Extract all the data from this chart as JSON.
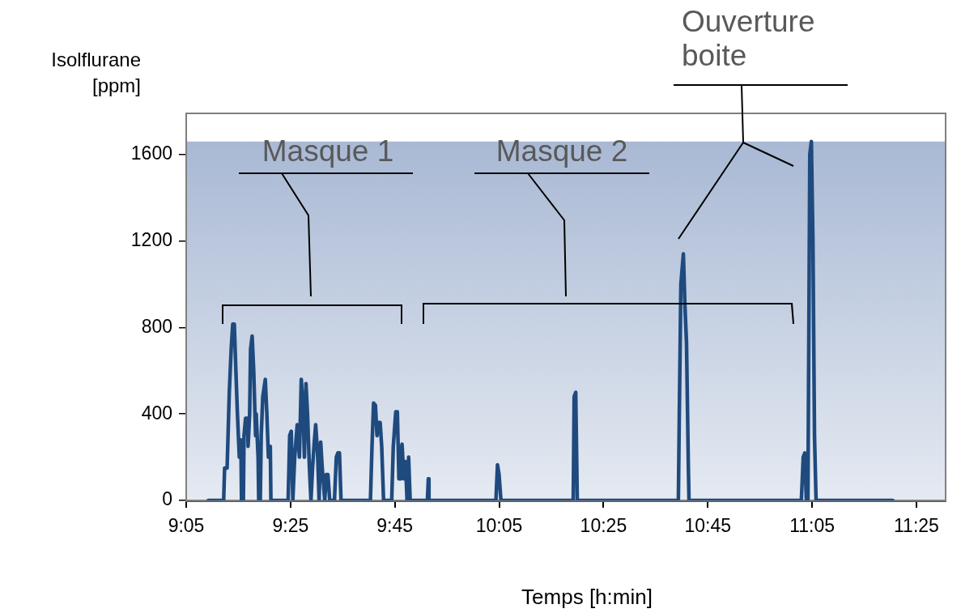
{
  "chart_data": {
    "type": "line",
    "xlabel": "Temps  [h:min]",
    "ylabel": "Isolflurane [ppm]",
    "annotations": [
      "Masque 1",
      "Masque 2",
      "Ouverture boite"
    ],
    "x": [
      9.154,
      9.203,
      9.206,
      9.214,
      9.221,
      9.227,
      9.232,
      9.237,
      9.242,
      9.247,
      9.253,
      9.258,
      9.26,
      9.266,
      9.268,
      9.273,
      9.279,
      9.281,
      9.286,
      9.289,
      9.294,
      9.299,
      9.305,
      9.307,
      9.313,
      9.315,
      9.32,
      9.323,
      9.328,
      9.336,
      9.341,
      9.346,
      9.352,
      9.354,
      9.365,
      9.409,
      9.414,
      9.419,
      9.424,
      9.43,
      9.438,
      9.445,
      9.451,
      9.456,
      9.461,
      9.466,
      9.471,
      9.477,
      9.482,
      9.487,
      9.492,
      9.497,
      9.503,
      9.508,
      9.513,
      9.518,
      9.526,
      9.531,
      9.536,
      9.542,
      9.557,
      9.563,
      9.568,
      9.573,
      9.578,
      9.672,
      9.677,
      9.682,
      9.688,
      9.693,
      9.698,
      9.703,
      9.708,
      9.714,
      9.74,
      9.745,
      9.753,
      9.758,
      9.763,
      9.768,
      9.771,
      9.773,
      9.779,
      9.784,
      9.789,
      9.794,
      9.799,
      9.854,
      9.857,
      9.859,
      10.073,
      10.078,
      10.083,
      10.089,
      10.32,
      10.323,
      10.328,
      10.333,
      10.656,
      10.659,
      10.664,
      10.672,
      10.677,
      10.682,
      10.688,
      10.69,
      11.049,
      11.055,
      11.06,
      11.065,
      11.07,
      11.076,
      11.081,
      11.086,
      11.091,
      11.096,
      11.341
    ],
    "series": [
      {
        "color": "#1f4a7e",
        "values": [
          0,
          0,
          150,
          150,
          500,
          700,
          815,
          815,
          600,
          400,
          200,
          280,
          0,
          0,
          300,
          380,
          380,
          250,
          400,
          700,
          760,
          600,
          300,
          400,
          200,
          0,
          0,
          300,
          480,
          560,
          400,
          200,
          250,
          0,
          0,
          0,
          300,
          320,
          0,
          200,
          350,
          200,
          560,
          450,
          200,
          540,
          400,
          150,
          0,
          150,
          260,
          350,
          220,
          0,
          270,
          150,
          0,
          120,
          120,
          0,
          0,
          200,
          220,
          220,
          0,
          0,
          250,
          450,
          440,
          300,
          360,
          360,
          250,
          0,
          0,
          250,
          410,
          410,
          100,
          250,
          100,
          260,
          100,
          180,
          0,
          200,
          0,
          0,
          100,
          0,
          0,
          165,
          120,
          0,
          0,
          480,
          500,
          0,
          0,
          400,
          1000,
          1140,
          900,
          730,
          150,
          0,
          0,
          200,
          220,
          0,
          0,
          1600,
          1660,
          1200,
          300,
          0,
          0
        ]
      }
    ],
    "xlim": [
      9.0833,
      11.51
    ],
    "ylim": [
      0,
      1790
    ],
    "xticks": [
      {
        "value": 9.0833,
        "label": "9:05"
      },
      {
        "value": 9.4167,
        "label": "9:25"
      },
      {
        "value": 9.75,
        "label": "9:45"
      },
      {
        "value": 10.0833,
        "label": "10:05"
      },
      {
        "value": 10.4167,
        "label": "10:25"
      },
      {
        "value": 10.75,
        "label": "10:45"
      },
      {
        "value": 11.0833,
        "label": "11:05"
      },
      {
        "value": 11.4167,
        "label": "11:25"
      }
    ],
    "yticks": [
      0,
      400,
      800,
      1200,
      1600
    ],
    "bands": [
      {
        "axis": "y",
        "from": 0,
        "to": 1660,
        "color": "#a9b9d4"
      }
    ],
    "grid": false,
    "legend": false,
    "marker": "none",
    "line_style": "solid"
  }
}
